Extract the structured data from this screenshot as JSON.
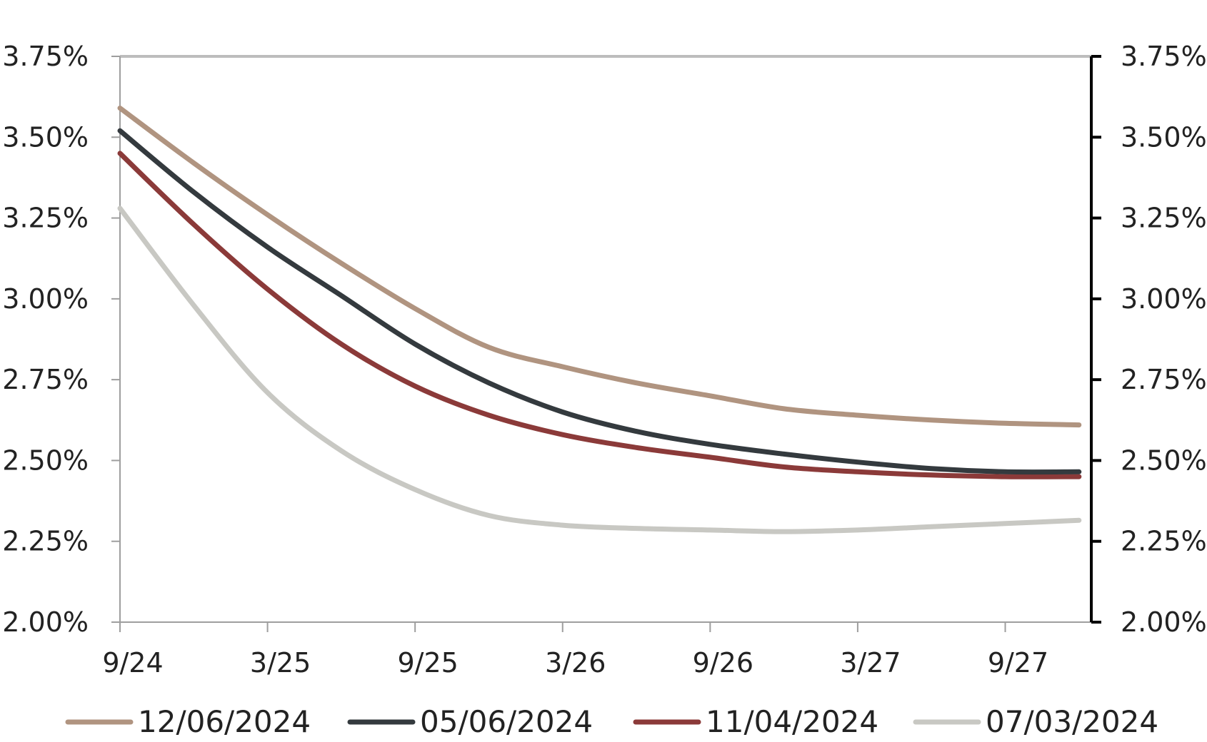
{
  "chart_data": {
    "type": "line",
    "x_ticks": [
      "9/24",
      "3/25",
      "9/25",
      "3/26",
      "9/26",
      "3/27",
      "9/27"
    ],
    "x_tick_positions": [
      0,
      6,
      12,
      18,
      24,
      30,
      36
    ],
    "xlim": [
      0,
      39.5
    ],
    "y_ticks": [
      "2.00%",
      "2.25%",
      "2.50%",
      "2.75%",
      "3.00%",
      "3.25%",
      "3.50%",
      "3.75%"
    ],
    "ylim": [
      2.0,
      3.75
    ],
    "legend_position": "bottom",
    "grid": false,
    "x": [
      0,
      3,
      6,
      9,
      12,
      15,
      18,
      21,
      24,
      27,
      30,
      33,
      36,
      39
    ],
    "series": [
      {
        "name": "12/06/2024",
        "color": "#b09480",
        "values": [
          3.59,
          3.42,
          3.26,
          3.11,
          2.97,
          2.85,
          2.79,
          2.74,
          2.7,
          2.66,
          2.64,
          2.625,
          2.615,
          2.61
        ]
      },
      {
        "name": "05/06/2024",
        "color": "#343a3e",
        "values": [
          3.52,
          3.33,
          3.16,
          3.01,
          2.86,
          2.74,
          2.65,
          2.59,
          2.55,
          2.52,
          2.495,
          2.475,
          2.465,
          2.465
        ]
      },
      {
        "name": "11/04/2024",
        "color": "#8b3a39",
        "values": [
          3.45,
          3.23,
          3.03,
          2.86,
          2.73,
          2.64,
          2.58,
          2.54,
          2.51,
          2.48,
          2.465,
          2.455,
          2.45,
          2.45
        ]
      },
      {
        "name": "07/03/2024",
        "color": "#c8c8c3",
        "values": [
          3.28,
          2.98,
          2.71,
          2.53,
          2.41,
          2.33,
          2.3,
          2.29,
          2.285,
          2.28,
          2.285,
          2.295,
          2.305,
          2.315
        ]
      }
    ]
  }
}
